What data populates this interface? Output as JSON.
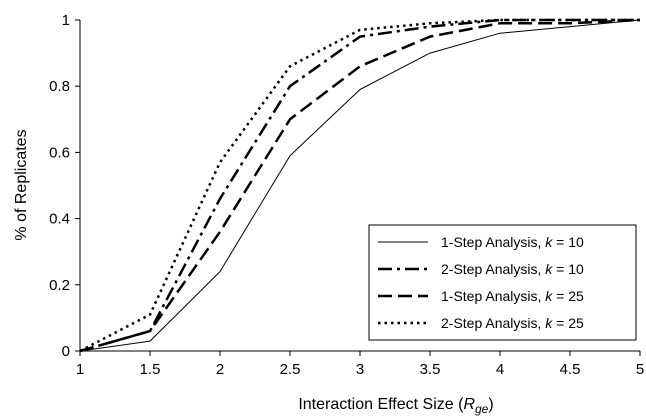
{
  "chart_data": {
    "type": "line",
    "title": "",
    "xlabel": "Interaction Effect Size (R",
    "xlabel_sub": "ge",
    "xlabel_close": ")",
    "ylabel": "% of Replicates",
    "xlim": [
      1,
      5
    ],
    "ylim": [
      0,
      1
    ],
    "xticks": [
      "1",
      "1.5",
      "2",
      "2.5",
      "3",
      "3.5",
      "4",
      "4.5",
      "5"
    ],
    "yticks": [
      "0",
      "0.2",
      "0.4",
      "0.6",
      "0.8",
      "1"
    ],
    "grid": false,
    "legend_position": "bottom-right",
    "x": [
      1,
      1.5,
      2,
      2.5,
      3,
      3.5,
      4,
      4.5,
      5
    ],
    "series": [
      {
        "name": "1-Step Analysis, ",
        "k_label": "k",
        "k_value": " = 10",
        "style": "solid",
        "values": [
          0,
          0.03,
          0.24,
          0.59,
          0.79,
          0.9,
          0.96,
          0.98,
          1.0
        ]
      },
      {
        "name": "2-Step Analysis, ",
        "k_label": "k",
        "k_value": " = 10",
        "style": "dash-dot",
        "values": [
          0,
          0.06,
          0.46,
          0.8,
          0.95,
          0.98,
          1.0,
          1.0,
          1.0
        ]
      },
      {
        "name": "1-Step Analysis, ",
        "k_label": "k",
        "k_value": " = 25",
        "style": "dash",
        "values": [
          0,
          0.06,
          0.36,
          0.7,
          0.86,
          0.95,
          0.99,
          0.99,
          1.0
        ]
      },
      {
        "name": "2-Step Analysis, ",
        "k_label": "k",
        "k_value": " = 25",
        "style": "dot",
        "values": [
          0,
          0.11,
          0.57,
          0.86,
          0.97,
          0.99,
          1.0,
          1.0,
          1.0
        ]
      }
    ]
  }
}
